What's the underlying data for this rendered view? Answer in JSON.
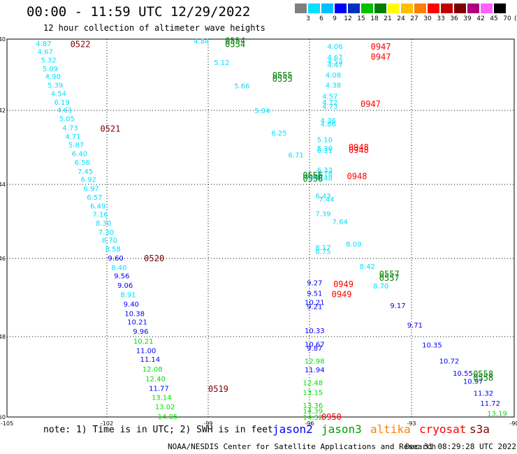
{
  "header": {
    "title": "00:00 - 11:59 UTC 12/29/2022",
    "subtitle": "12 hour collection of altimeter wave heights"
  },
  "colorbar": {
    "unit": "(ft)",
    "levels": [
      "3",
      "6",
      "9",
      "12",
      "15",
      "18",
      "21",
      "24",
      "27",
      "30",
      "33",
      "36",
      "39",
      "42",
      "45",
      "70"
    ],
    "colors": [
      "#7f7f7f",
      "#00e0ff",
      "#00c0ff",
      "#0000ff",
      "#0030c0",
      "#00c000",
      "#008000",
      "#ffff00",
      "#ffc000",
      "#ff8000",
      "#ff0000",
      "#c00000",
      "#800000",
      "#b00080",
      "#ff60ff",
      "#000000"
    ]
  },
  "note": "note: 1) Time is in UTC; 2) SWH is in feet",
  "satellites": [
    {
      "name": "jason2",
      "color": "#0000ff"
    },
    {
      "name": "jason3",
      "color": "#00a000"
    },
    {
      "name": "altika",
      "color": "#ff8000"
    },
    {
      "name": "cryosat",
      "color": "#ff0000"
    },
    {
      "name": "s3a",
      "color": "#800000"
    }
  ],
  "footer": {
    "credit": "NOAA/NESDIS Center for Satellite Applications and Research",
    "generated": "Dec 31 08:29:28 UTC 2022"
  },
  "chart_data": {
    "type": "scatter",
    "title": "00:00 - 11:59 UTC 12/29/2022",
    "subtitle": "12 hour collection of altimeter wave heights",
    "xlim": [
      -105,
      -90
    ],
    "ylim": [
      -50,
      -40
    ],
    "x_ticks": [
      -105,
      -102,
      -99,
      -96,
      -93,
      -90
    ],
    "y_ticks": [
      -40,
      -42,
      -44,
      -46,
      -48,
      -50
    ],
    "x_tick_labels": [
      "-105",
      "-102",
      "-99",
      "-96",
      "-93",
      "-90"
    ],
    "y_tick_labels": [
      "-40",
      "-42",
      "-44",
      "-46",
      "-48",
      "-50"
    ],
    "grid": true,
    "series": [
      {
        "name": "track_west",
        "points": [
          {
            "x": -103.9,
            "y": -40.12,
            "v": "4.87",
            "c": "#00e0ff"
          },
          {
            "x": -103.85,
            "y": -40.34,
            "v": "4.67",
            "c": "#00e0ff"
          },
          {
            "x": -103.75,
            "y": -40.58,
            "v": "5.32",
            "c": "#00e0ff"
          },
          {
            "x": -103.7,
            "y": -40.82,
            "v": "5.09",
            "c": "#00e0ff"
          },
          {
            "x": -103.62,
            "y": -41.04,
            "v": "4.90",
            "c": "#00e0ff"
          },
          {
            "x": -103.55,
            "y": -41.28,
            "v": "5.39",
            "c": "#00e0ff"
          },
          {
            "x": -103.45,
            "y": -41.52,
            "v": "4.54",
            "c": "#00e0ff"
          },
          {
            "x": -103.35,
            "y": -41.76,
            "v": "6.19",
            "c": "#00e0ff"
          },
          {
            "x": -103.27,
            "y": -41.98,
            "v": "4.61",
            "c": "#00e0ff"
          },
          {
            "x": -103.2,
            "y": -42.22,
            "v": "5.05",
            "c": "#00e0ff"
          },
          {
            "x": -103.1,
            "y": -42.46,
            "v": "4.73",
            "c": "#00e0ff"
          },
          {
            "x": -103.02,
            "y": -42.7,
            "v": "4.71",
            "c": "#00e0ff"
          },
          {
            "x": -102.92,
            "y": -42.92,
            "v": "5.87",
            "c": "#00e0ff"
          },
          {
            "x": -102.82,
            "y": -43.16,
            "v": "6.40",
            "c": "#00e0ff"
          },
          {
            "x": -102.74,
            "y": -43.4,
            "v": "6.56",
            "c": "#00e0ff"
          },
          {
            "x": -102.65,
            "y": -43.64,
            "v": "7.45",
            "c": "#00e0ff"
          },
          {
            "x": -102.55,
            "y": -43.86,
            "v": "6.92",
            "c": "#00e0ff"
          },
          {
            "x": -102.47,
            "y": -44.1,
            "v": "6.97",
            "c": "#00e0ff"
          },
          {
            "x": -102.37,
            "y": -44.34,
            "v": "6.57",
            "c": "#00e0ff"
          },
          {
            "x": -102.27,
            "y": -44.58,
            "v": "6.49",
            "c": "#00e0ff"
          },
          {
            "x": -102.2,
            "y": -44.8,
            "v": "7.16",
            "c": "#00e0ff"
          },
          {
            "x": -102.1,
            "y": -45.04,
            "v": "8.30",
            "c": "#00e0ff"
          },
          {
            "x": -102.02,
            "y": -45.28,
            "v": "7.30",
            "c": "#00e0ff"
          },
          {
            "x": -101.92,
            "y": -45.5,
            "v": "8.70",
            "c": "#00e0ff"
          },
          {
            "x": -101.82,
            "y": -45.74,
            "v": "8.58",
            "c": "#00e0ff"
          },
          {
            "x": -101.74,
            "y": -45.98,
            "v": "9.60",
            "c": "#0000ff"
          },
          {
            "x": -101.64,
            "y": -46.22,
            "v": "8.40",
            "c": "#00e0ff"
          },
          {
            "x": -101.56,
            "y": -46.44,
            "v": "9.56",
            "c": "#0000ff"
          },
          {
            "x": -101.46,
            "y": -46.68,
            "v": "9.06",
            "c": "#0000ff"
          },
          {
            "x": -101.37,
            "y": -46.92,
            "v": "8.91",
            "c": "#00e0ff"
          },
          {
            "x": -101.28,
            "y": -47.16,
            "v": "9.40",
            "c": "#0000ff"
          },
          {
            "x": -101.18,
            "y": -47.4,
            "v": "10.38",
            "c": "#0000ff"
          },
          {
            "x": -101.1,
            "y": -47.62,
            "v": "10.21",
            "c": "#0000ff"
          },
          {
            "x": -101.0,
            "y": -47.86,
            "v": "9.96",
            "c": "#0000ff"
          },
          {
            "x": -100.92,
            "y": -48.1,
            "v": "10.21",
            "c": "#00e000"
          },
          {
            "x": -100.84,
            "y": -48.34,
            "v": "11.00",
            "c": "#0000ff"
          },
          {
            "x": -100.72,
            "y": -48.56,
            "v": "11.14",
            "c": "#0000ff"
          },
          {
            "x": -100.65,
            "y": -48.8,
            "v": "12.08",
            "c": "#00e000"
          },
          {
            "x": -100.56,
            "y": -49.04,
            "v": "12.40",
            "c": "#00e000"
          },
          {
            "x": -100.46,
            "y": -49.28,
            "v": "11.77",
            "c": "#0000ff"
          },
          {
            "x": -100.38,
            "y": -49.5,
            "v": "13.14",
            "c": "#00e000"
          },
          {
            "x": -100.28,
            "y": -49.74,
            "v": "13.02",
            "c": "#00e000"
          },
          {
            "x": -100.2,
            "y": -49.98,
            "v": "14.05",
            "c": "#00e000"
          }
        ]
      },
      {
        "name": "track_middle",
        "points": [
          {
            "x": -95.25,
            "y": -40.2,
            "v": "4.06",
            "c": "#00e0ff"
          },
          {
            "x": -95.25,
            "y": -40.5,
            "v": "4.67",
            "c": "#00e0ff"
          },
          {
            "x": -95.25,
            "y": -40.62,
            "v": "4.53",
            "c": "#00e0ff"
          },
          {
            "x": -95.25,
            "y": -40.72,
            "v": "4.47",
            "c": "#00e0ff"
          },
          {
            "x": -95.3,
            "y": -41.0,
            "v": "4.08",
            "c": "#00e0ff"
          },
          {
            "x": -95.3,
            "y": -41.28,
            "v": "4.38",
            "c": "#00e0ff"
          },
          {
            "x": -95.4,
            "y": -41.6,
            "v": "4.57",
            "c": "#00e0ff"
          },
          {
            "x": -95.4,
            "y": -41.76,
            "v": "4.72",
            "c": "#00e0ff"
          },
          {
            "x": -95.4,
            "y": -41.88,
            "v": "4.73",
            "c": "#00e0ff"
          },
          {
            "x": -95.45,
            "y": -42.26,
            "v": "4.36",
            "c": "#00e0ff"
          },
          {
            "x": -95.45,
            "y": -42.36,
            "v": "4.86",
            "c": "#00e0ff"
          },
          {
            "x": -95.55,
            "y": -42.78,
            "v": "5.10",
            "c": "#00e0ff"
          },
          {
            "x": -95.55,
            "y": -43.02,
            "v": "5.30",
            "c": "#00e0ff"
          },
          {
            "x": -95.55,
            "y": -43.08,
            "v": "6.11",
            "c": "#00e0ff"
          },
          {
            "x": -95.55,
            "y": -43.6,
            "v": "6.33",
            "c": "#00e0ff"
          },
          {
            "x": -95.55,
            "y": -43.7,
            "v": "5.78",
            "c": "#00e0ff"
          },
          {
            "x": -95.55,
            "y": -43.82,
            "v": "6.48",
            "c": "#00e0ff"
          },
          {
            "x": -95.6,
            "y": -44.3,
            "v": "6.43",
            "c": "#00e0ff"
          },
          {
            "x": -95.6,
            "y": -44.78,
            "v": "7.39",
            "c": "#00e0ff"
          },
          {
            "x": -95.6,
            "y": -45.7,
            "v": "8.17",
            "c": "#00e0ff"
          },
          {
            "x": -95.6,
            "y": -45.8,
            "v": "8.75",
            "c": "#00e0ff"
          },
          {
            "x": -95.85,
            "y": -46.62,
            "v": "9.27",
            "c": "#0000ff"
          },
          {
            "x": -95.85,
            "y": -46.88,
            "v": "9.51",
            "c": "#0000ff"
          },
          {
            "x": -95.85,
            "y": -47.12,
            "v": "10.21",
            "c": "#0000ff"
          },
          {
            "x": -95.85,
            "y": -47.22,
            "v": "9.21",
            "c": "#0000ff"
          },
          {
            "x": -95.85,
            "y": -47.84,
            "v": "10.33",
            "c": "#0000ff"
          },
          {
            "x": -95.85,
            "y": -48.18,
            "v": "10.67",
            "c": "#0000ff"
          },
          {
            "x": -95.85,
            "y": -48.28,
            "v": "9.87",
            "c": "#0000ff"
          },
          {
            "x": -95.85,
            "y": -48.6,
            "v": "12.98",
            "c": "#00e000"
          },
          {
            "x": -95.85,
            "y": -48.82,
            "v": "11.94",
            "c": "#0000ff"
          },
          {
            "x": -95.9,
            "y": -49.14,
            "v": "12.48",
            "c": "#00e000"
          },
          {
            "x": -95.9,
            "y": -49.38,
            "v": "13.15",
            "c": "#00e000"
          },
          {
            "x": -95.9,
            "y": -49.7,
            "v": "13.36",
            "c": "#00e000"
          },
          {
            "x": -95.9,
            "y": -49.84,
            "v": "14.39",
            "c": "#00e000"
          },
          {
            "x": -95.9,
            "y": -50.0,
            "v": "14.32",
            "c": "#00e000"
          }
        ]
      },
      {
        "name": "track_diagonal",
        "points": [
          {
            "x": -99.2,
            "y": -40.05,
            "v": "4.84",
            "c": "#00e0ff"
          },
          {
            "x": -98.6,
            "y": -40.65,
            "v": "5.12",
            "c": "#00e0ff"
          },
          {
            "x": -98.0,
            "y": -41.3,
            "v": "5.66",
            "c": "#00e0ff"
          },
          {
            "x": -97.4,
            "y": -42.0,
            "v": "5.94",
            "c": "#00e0ff"
          },
          {
            "x": -96.9,
            "y": -42.6,
            "v": "6.25",
            "c": "#00e0ff"
          },
          {
            "x": -96.4,
            "y": -43.2,
            "v": "6.71",
            "c": "#00e0ff"
          },
          {
            "x": -95.9,
            "y": -43.8,
            "v": "7.08",
            "c": "#00e0ff"
          },
          {
            "x": -95.5,
            "y": -44.4,
            "v": "7.44",
            "c": "#00e0ff"
          },
          {
            "x": -95.1,
            "y": -45.0,
            "v": "7.64",
            "c": "#00e0ff"
          },
          {
            "x": -94.7,
            "y": -45.6,
            "v": "8.09",
            "c": "#00e0ff"
          },
          {
            "x": -94.3,
            "y": -46.2,
            "v": "8.42",
            "c": "#00e0ff"
          },
          {
            "x": -93.9,
            "y": -46.7,
            "v": "8.70",
            "c": "#00e0ff"
          },
          {
            "x": -93.4,
            "y": -47.2,
            "v": "9.17",
            "c": "#0000ff"
          },
          {
            "x": -92.9,
            "y": -47.7,
            "v": "9.71",
            "c": "#0000ff"
          },
          {
            "x": -92.4,
            "y": -48.2,
            "v": "10.35",
            "c": "#0000ff"
          },
          {
            "x": -91.9,
            "y": -48.6,
            "v": "10.72",
            "c": "#0000ff"
          },
          {
            "x": -91.5,
            "y": -48.9,
            "v": "10.55",
            "c": "#0000ff"
          },
          {
            "x": -91.2,
            "y": -49.1,
            "v": "10.97",
            "c": "#0000ff"
          },
          {
            "x": -90.9,
            "y": -49.4,
            "v": "11.32",
            "c": "#0000ff"
          },
          {
            "x": -90.7,
            "y": -49.65,
            "v": "11.72",
            "c": "#0000ff"
          },
          {
            "x": -90.5,
            "y": -49.9,
            "v": "13.19",
            "c": "#00e000"
          }
        ]
      }
    ],
    "annotations": [
      {
        "x": -103.1,
        "y": -40.15,
        "text": "0522",
        "c": "#800000"
      },
      {
        "x": -102.2,
        "y": -42.5,
        "text": "0521",
        "c": "#800000"
      },
      {
        "x": -100.9,
        "y": -46.0,
        "text": "0520",
        "c": "#800000"
      },
      {
        "x": -99.0,
        "y": -49.3,
        "text": "0519",
        "c": "#800000"
      },
      {
        "x": -98.5,
        "y": -40.05,
        "text": "0554",
        "c": "#008000"
      },
      {
        "x": -98.5,
        "y": -40.15,
        "text": "0554",
        "c": "#008000"
      },
      {
        "x": -97.1,
        "y": -41.02,
        "text": "0555",
        "c": "#008000"
      },
      {
        "x": -97.1,
        "y": -41.12,
        "text": "0555",
        "c": "#008000"
      },
      {
        "x": -96.2,
        "y": -43.75,
        "text": "0556",
        "c": "#008000"
      },
      {
        "x": -96.2,
        "y": -43.85,
        "text": "0556",
        "c": "#008000"
      },
      {
        "x": -93.95,
        "y": -46.4,
        "text": "0557",
        "c": "#008000"
      },
      {
        "x": -93.95,
        "y": -46.5,
        "text": "0557",
        "c": "#008000"
      },
      {
        "x": -91.2,
        "y": -48.93,
        "text": "0558",
        "c": "#008000"
      },
      {
        "x": -91.2,
        "y": -49.03,
        "text": "0558",
        "c": "#008000"
      },
      {
        "x": -94.2,
        "y": -40.22,
        "text": "0947",
        "c": "#ff0000"
      },
      {
        "x": -94.2,
        "y": -40.5,
        "text": "0947",
        "c": "#ff0000"
      },
      {
        "x": -94.5,
        "y": -41.82,
        "text": "0947",
        "c": "#ff0000"
      },
      {
        "x": -94.85,
        "y": -43.0,
        "text": "0948",
        "c": "#ff0000"
      },
      {
        "x": -94.85,
        "y": -43.08,
        "text": "0948",
        "c": "#ff0000"
      },
      {
        "x": -94.9,
        "y": -43.78,
        "text": "0948",
        "c": "#ff0000"
      },
      {
        "x": -95.3,
        "y": -46.66,
        "text": "0949",
        "c": "#ff0000"
      },
      {
        "x": -95.35,
        "y": -46.92,
        "text": "0949",
        "c": "#ff0000"
      },
      {
        "x": -95.65,
        "y": -50.0,
        "text": "0950",
        "c": "#ff0000"
      }
    ]
  }
}
